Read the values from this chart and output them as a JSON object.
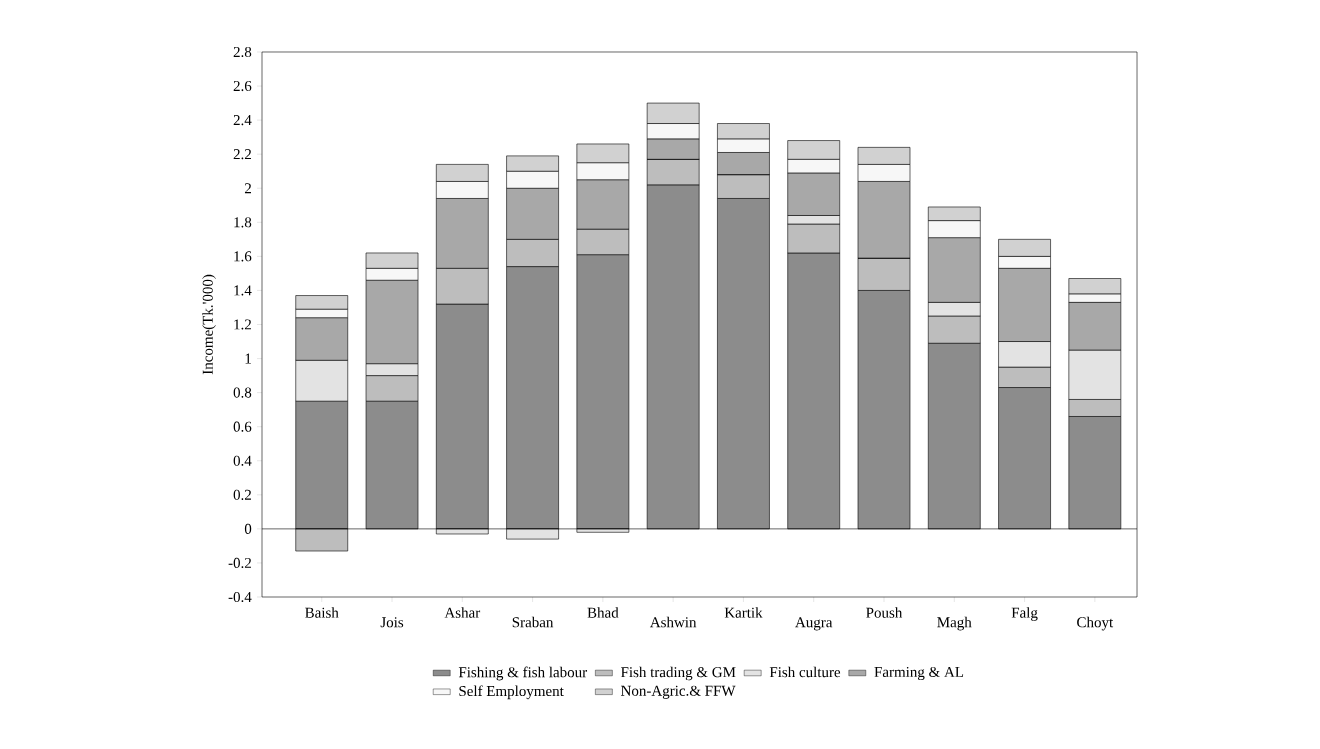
{
  "chart_data": {
    "type": "bar",
    "stacked": true,
    "ylabel": "Income(Tk.'000)",
    "categories": [
      "Baish",
      "Jois",
      "Ashar",
      "Sraban",
      "Bhad",
      "Ashwin",
      "Kartik",
      "Augra",
      "Poush",
      "Magh",
      "Falg",
      "Choyt"
    ],
    "series": [
      {
        "name": "Fishing & fish labour",
        "color": "#8c8c8c",
        "values": [
          0.75,
          0.75,
          1.32,
          1.54,
          1.61,
          2.02,
          1.94,
          1.62,
          1.4,
          1.09,
          0.83,
          0.66
        ]
      },
      {
        "name": "Fish trading & GM",
        "color": "#bdbdbd",
        "values": [
          -0.13,
          0.15,
          0.21,
          0.16,
          0.15,
          0.15,
          0.14,
          0.17,
          0.19,
          0.16,
          0.12,
          0.1
        ]
      },
      {
        "name": "Fish culture",
        "color": "#e3e3e3",
        "values": [
          0.24,
          0.07,
          -0.03,
          -0.06,
          -0.02,
          0,
          0,
          0.05,
          0,
          0.08,
          0.15,
          0.29
        ]
      },
      {
        "name": "Farming & AL",
        "color": "#a8a8a8",
        "values": [
          0.25,
          0.49,
          0.41,
          0.3,
          0.29,
          0.12,
          0.13,
          0.25,
          0.45,
          0.38,
          0.43,
          0.28
        ]
      },
      {
        "name": "Self Employment",
        "color": "#f7f7f7",
        "values": [
          0.05,
          0.07,
          0.1,
          0.1,
          0.1,
          0.09,
          0.08,
          0.08,
          0.1,
          0.1,
          0.07,
          0.05
        ]
      },
      {
        "name": "Non-Agric.& FFW",
        "color": "#d1d1d1",
        "values": [
          0.08,
          0.09,
          0.1,
          0.09,
          0.11,
          0.12,
          0.09,
          0.11,
          0.1,
          0.08,
          0.1,
          0.09
        ]
      }
    ],
    "ylim": [
      -0.4,
      2.8
    ],
    "yticks": [
      -0.4,
      -0.2,
      0,
      0.2,
      0.4,
      0.6,
      0.8,
      1,
      1.2,
      1.4,
      1.6,
      1.8,
      2,
      2.2,
      2.4,
      2.6,
      2.8
    ],
    "legend": "bottom"
  }
}
